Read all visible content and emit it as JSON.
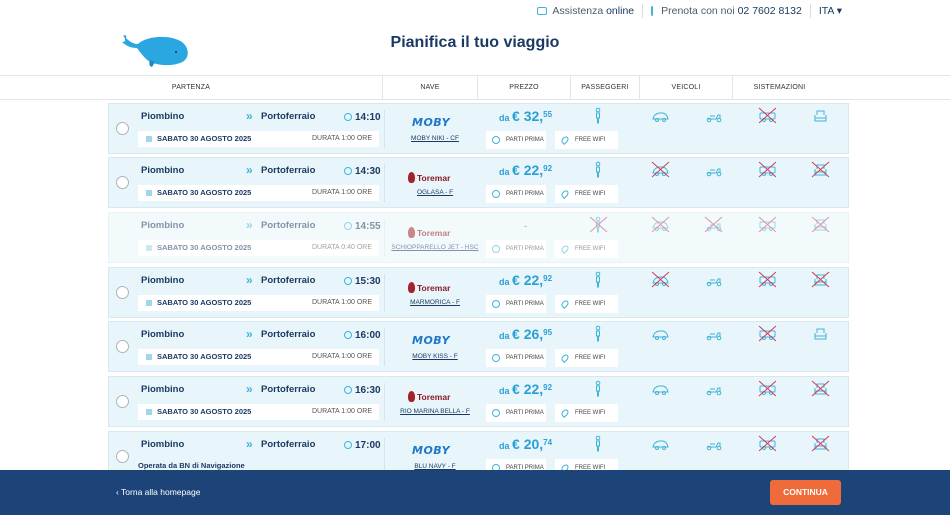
{
  "topbar": {
    "assist_prefix": "Assistenza ",
    "assist_bold": "online",
    "phone_prefix": "Prenota con noi ",
    "phone_number": "02 7602 8132",
    "language": "ITA ▾"
  },
  "header": {
    "title": "Pianifica il tuo viaggio"
  },
  "columns": [
    "PARTENZA",
    "NAVE",
    "PREZZO",
    "PASSEGGERI",
    "VEICOLI",
    "SISTEMAZIONI"
  ],
  "colors": {
    "accent": "#3fb3d8",
    "primary": "#1b3a63",
    "footer": "#1d4478",
    "cta": "#ef6b3a",
    "unavailable": "#d23a5a"
  },
  "labels": {
    "parti_prima": "PARTI PRIMA",
    "free_wifi": "FREE WIFI"
  },
  "trips": [
    {
      "from": "Piombino",
      "to": "Portoferraio",
      "time": "14:10",
      "date": "SABATO 30 AGOSTO 2025",
      "duration": "DURATA 1:00 ORE",
      "company": "MOBY",
      "ship": "MOBY NIKI - CF",
      "price_prefix": "da",
      "price_int": "€ 32,",
      "price_dec": "55",
      "available": true,
      "services": {
        "passenger": true,
        "car": true,
        "moto": true,
        "camper": false,
        "seat": true
      }
    },
    {
      "from": "Piombino",
      "to": "Portoferraio",
      "time": "14:30",
      "date": "SABATO 30 AGOSTO 2025",
      "duration": "DURATA 1:00 ORE",
      "company": "Toremar",
      "ship": "OGLASA - F",
      "price_prefix": "da",
      "price_int": "€ 22,",
      "price_dec": "92",
      "available": true,
      "services": {
        "passenger": true,
        "car": false,
        "moto": true,
        "camper": false,
        "seat": false
      }
    },
    {
      "from": "Piombino",
      "to": "Portoferraio",
      "time": "14:55",
      "date": "SABATO 30 AGOSTO 2025",
      "duration": "DURATA 0:40 ORE",
      "company": "Toremar",
      "ship": "SCHIOPPARELLO JET - HSC",
      "price_placeholder": "-",
      "available": false,
      "services": {
        "passenger": false,
        "car": false,
        "moto": false,
        "camper": false,
        "seat": false
      }
    },
    {
      "from": "Piombino",
      "to": "Portoferraio",
      "time": "15:30",
      "date": "SABATO 30 AGOSTO 2025",
      "duration": "DURATA 1:00 ORE",
      "company": "Toremar",
      "ship": "MARMORICA - F",
      "price_prefix": "da",
      "price_int": "€ 22,",
      "price_dec": "92",
      "available": true,
      "services": {
        "passenger": true,
        "car": false,
        "moto": true,
        "camper": false,
        "seat": false
      }
    },
    {
      "from": "Piombino",
      "to": "Portoferraio",
      "time": "16:00",
      "date": "SABATO 30 AGOSTO 2025",
      "duration": "DURATA 1:00 ORE",
      "company": "MOBY",
      "ship": "MOBY KISS - F",
      "price_prefix": "da",
      "price_int": "€ 26,",
      "price_dec": "95",
      "available": true,
      "services": {
        "passenger": true,
        "car": true,
        "moto": true,
        "camper": false,
        "seat": true
      }
    },
    {
      "from": "Piombino",
      "to": "Portoferraio",
      "time": "16:30",
      "date": "SABATO 30 AGOSTO 2025",
      "duration": "DURATA 1:00 ORE",
      "company": "Toremar",
      "ship": "RIO MARINA BELLA - F",
      "price_prefix": "da",
      "price_int": "€ 22,",
      "price_dec": "92",
      "available": true,
      "services": {
        "passenger": true,
        "car": true,
        "moto": true,
        "camper": false,
        "seat": false
      }
    },
    {
      "from": "Piombino",
      "to": "Portoferraio",
      "time": "17:00",
      "operated_by": "Operata da BN di Navigazione",
      "company": "MOBY",
      "ship": "BLU NAVY - F",
      "price_prefix": "da",
      "price_int": "€ 20,",
      "price_dec": "74",
      "available": true,
      "services": {
        "passenger": true,
        "car": true,
        "moto": true,
        "camper": false,
        "seat": false
      }
    }
  ],
  "footer": {
    "back": "Torna alla homepage",
    "continue": "CONTINUA"
  }
}
